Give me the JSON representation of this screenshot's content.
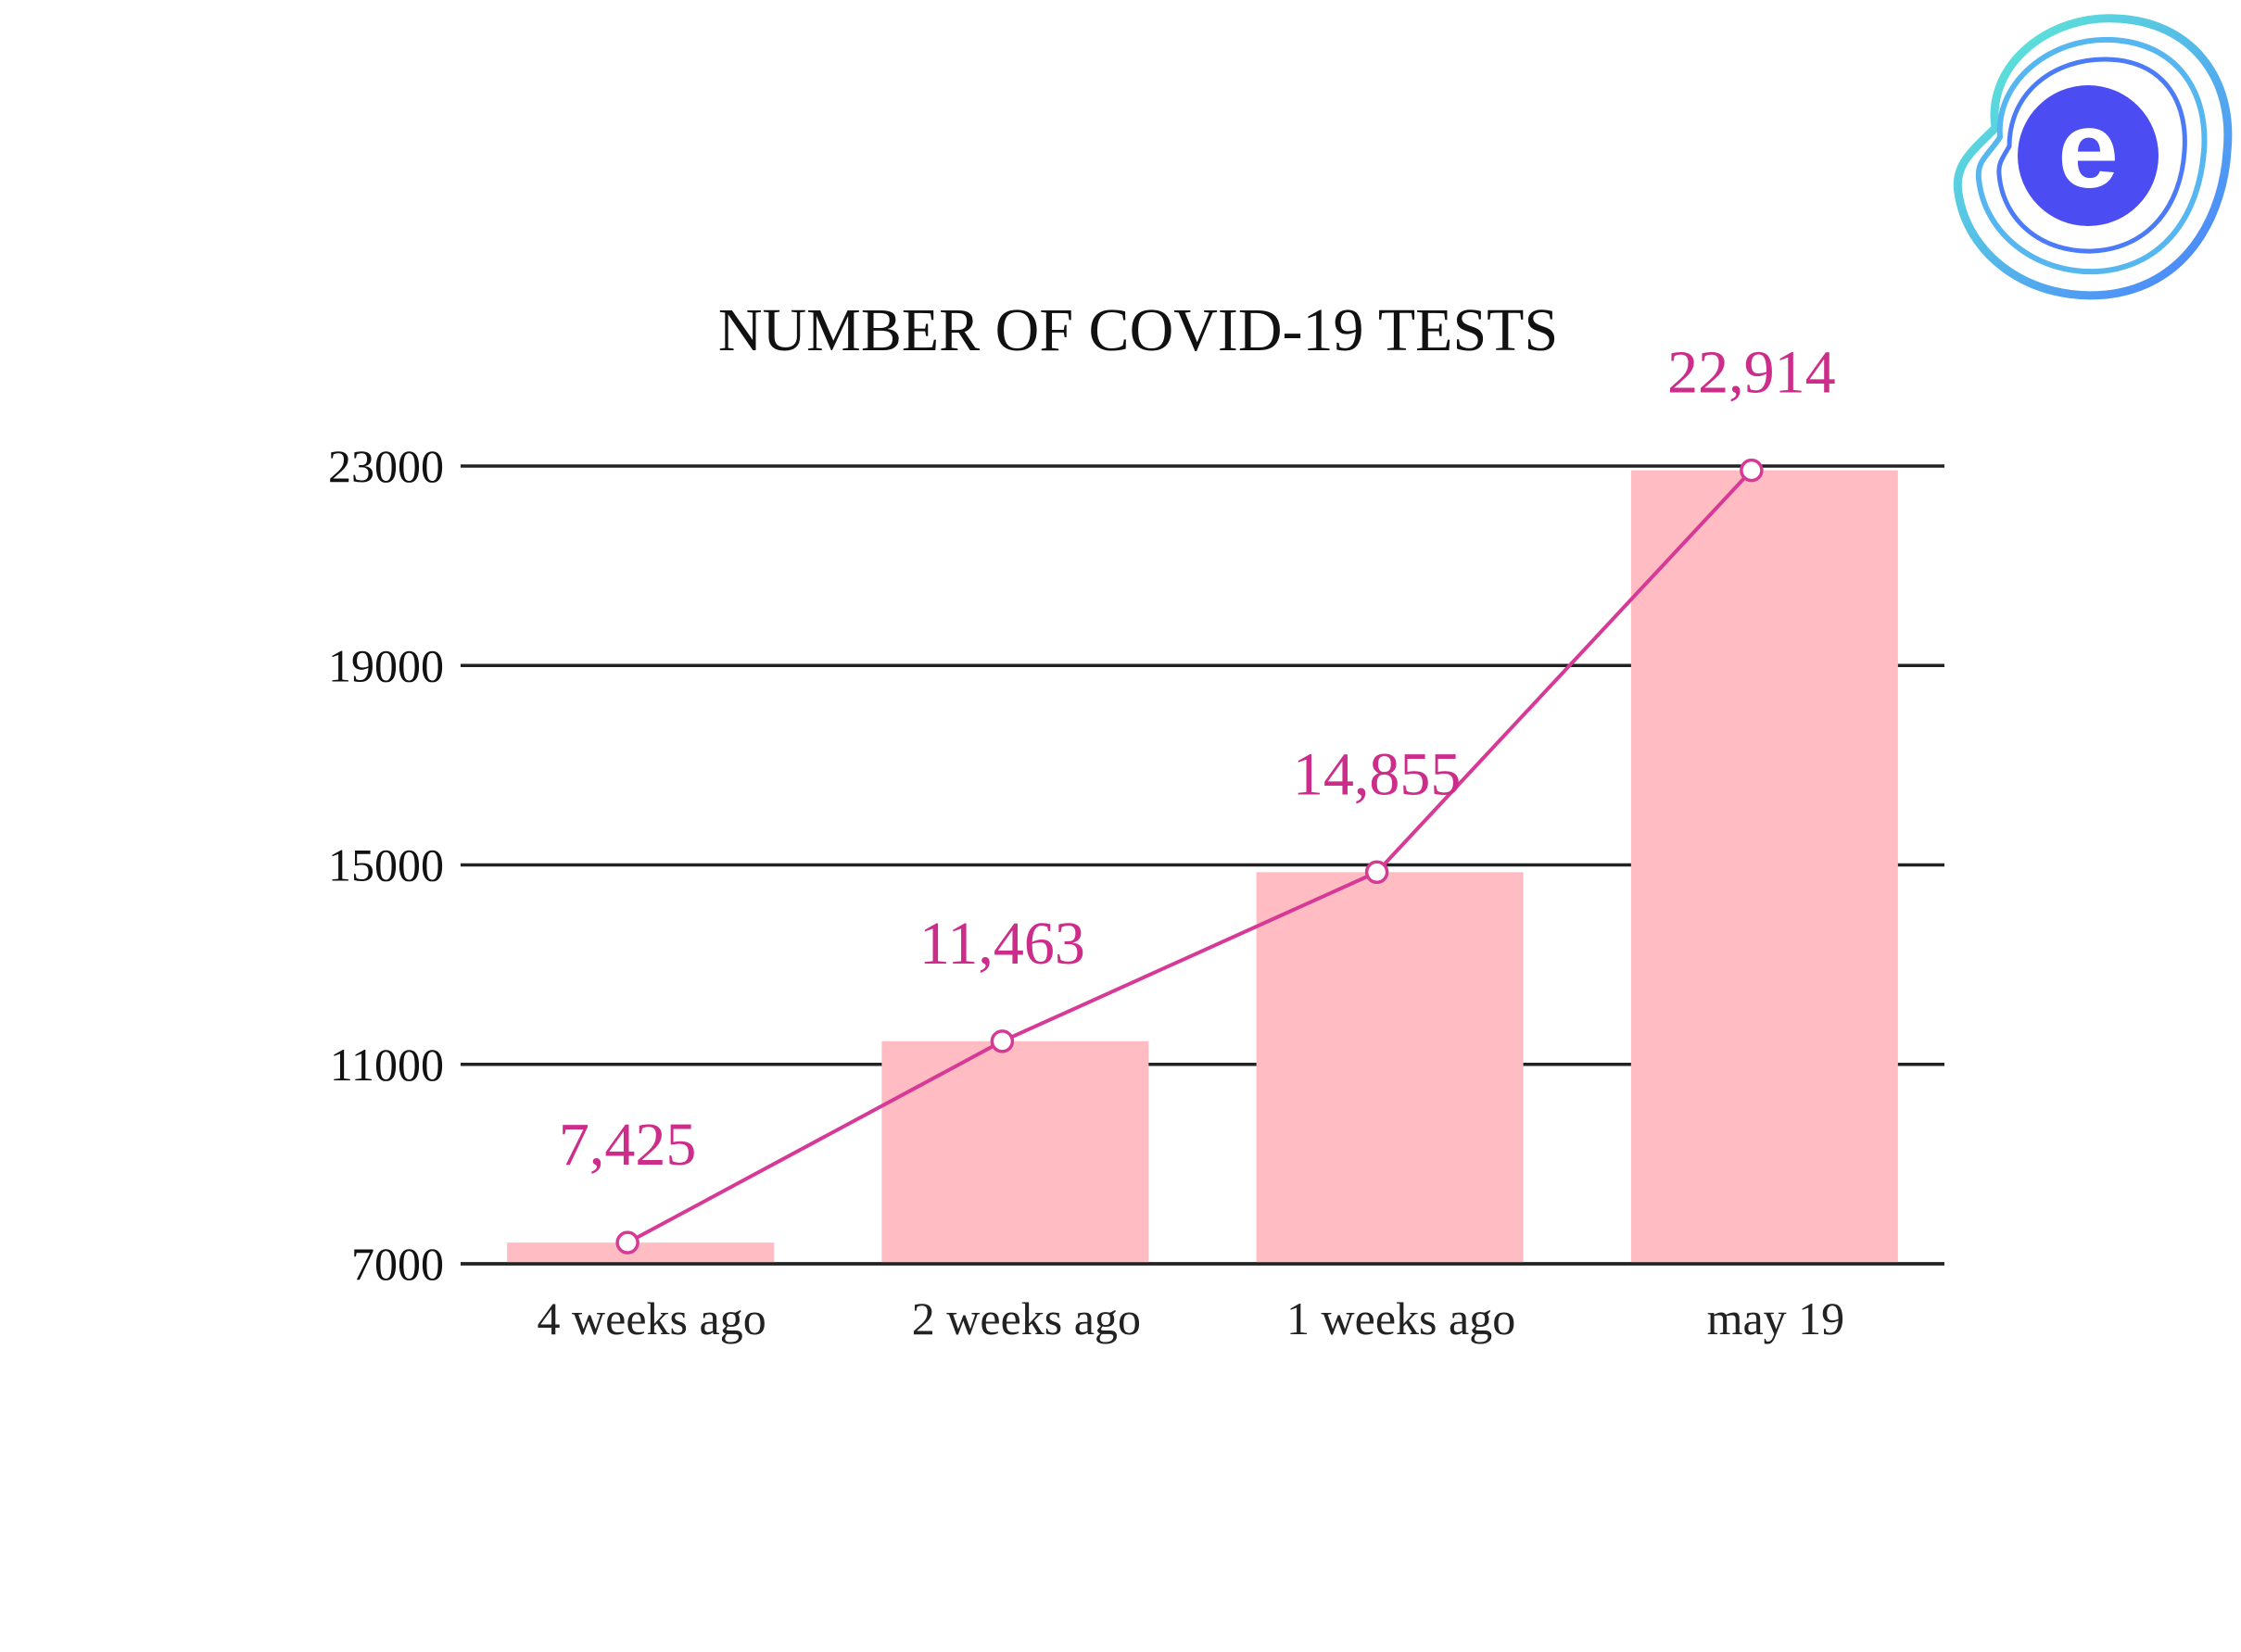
{
  "chart_data": {
    "type": "bar",
    "title": "NUMBER OF COVID-19 TESTS",
    "xlabel": "",
    "ylabel": "",
    "categories": [
      "4 weeks ago",
      "2 weeks ago",
      "1 weeks ago",
      "may 19"
    ],
    "series": [
      {
        "type": "bar",
        "values": [
          7425,
          11463,
          14855,
          22914
        ]
      },
      {
        "type": "line",
        "values": [
          7425,
          11463,
          14855,
          22914
        ]
      }
    ],
    "data_labels": [
      "7,425",
      "11,463",
      "14,855",
      "22,914"
    ],
    "yticks": [
      7000,
      11000,
      15000,
      19000,
      23000
    ],
    "ylim": [
      7000,
      23000
    ],
    "grid": true,
    "legend": "none",
    "colors": {
      "bar": "#ffbcc3",
      "line": "#d63a96",
      "label": "#cc2c8a",
      "grid": "#222222"
    }
  },
  "logo": {
    "name": "e-logo-icon",
    "letter": "e",
    "colors": {
      "outer_ring_start": "#5ff2d2",
      "outer_ring_end": "#4a7dff",
      "inner": "#4b4cf2"
    }
  }
}
